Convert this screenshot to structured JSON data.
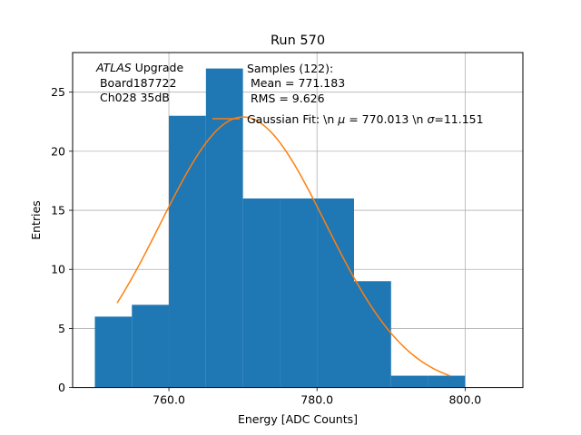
{
  "chart_data": {
    "type": "bar",
    "title": "Run 570",
    "xlabel": "Energy [ADC Counts]",
    "ylabel": "Entries",
    "xlim": [
      747,
      807.8
    ],
    "ylim": [
      0,
      28.35
    ],
    "x_ticks": [
      760,
      780,
      800
    ],
    "x_tick_labels": [
      "760.0",
      "780.0",
      "800.0"
    ],
    "y_ticks": [
      0,
      5,
      10,
      15,
      20,
      25
    ],
    "y_tick_labels": [
      "0",
      "5",
      "10",
      "15",
      "20",
      "25"
    ],
    "grid": true,
    "histogram": {
      "bins": [
        {
          "x0": 750,
          "x1": 755,
          "count": 6
        },
        {
          "x0": 755,
          "x1": 760,
          "count": 7
        },
        {
          "x0": 760,
          "x1": 765,
          "count": 23
        },
        {
          "x0": 765,
          "x1": 770,
          "count": 27
        },
        {
          "x0": 770,
          "x1": 775,
          "count": 16
        },
        {
          "x0": 775,
          "x1": 780,
          "count": 16
        },
        {
          "x0": 780,
          "x1": 785,
          "count": 16
        },
        {
          "x0": 785,
          "x1": 790,
          "count": 9
        },
        {
          "x0": 790,
          "x1": 795,
          "count": 1
        },
        {
          "x0": 795,
          "x1": 800,
          "count": 1
        }
      ],
      "color": "#1f77b4"
    },
    "fit": {
      "amplitude": 22.9,
      "mu": 770.013,
      "sigma": 11.151,
      "x_range": [
        753,
        798
      ],
      "color": "#ff7f0e"
    },
    "legend": {
      "placement": "top-right",
      "entries": [
        {
          "label": "Samples (122):",
          "kind": "patch"
        },
        {
          "label": " Mean = 771.183",
          "kind": "text"
        },
        {
          "label": " RMS = 9.626",
          "kind": "text"
        },
        {
          "label": "Gaussian Fit: \\n $\\mu$ = 770.013 \\n $\\sigma$=11.151",
          "kind": "line",
          "display_prefix": "Gaussian Fit: \\n ",
          "mu_symbol": "μ",
          "mid": " = 770.013 \\n ",
          "sigma_symbol": "σ",
          "suffix": "=11.151"
        }
      ]
    },
    "annotation": {
      "italic": "ATLAS",
      "rest": " Upgrade",
      "line2": " Board187722",
      "line3": " Ch028 35dB"
    }
  }
}
